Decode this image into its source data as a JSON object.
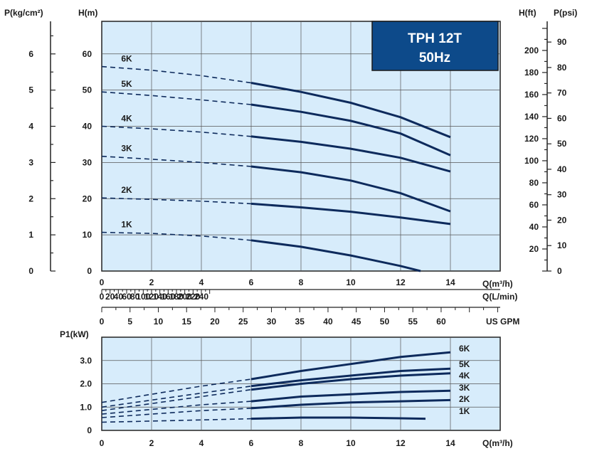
{
  "title_box": {
    "line1": "TPH 12T",
    "line2": "50Hz",
    "bg_color": "#0d4a8a"
  },
  "colors": {
    "plot_bg": "#d7ecfb",
    "curve": "#0d2a5c",
    "grid": "#555555"
  },
  "axis_labels": {
    "pressure_kg": "P(kg/cm²)",
    "head_m": "H(m)",
    "head_ft": "H(ft)",
    "pressure_psi": "P(psi)",
    "flow_m3h": "Q(m³/h)",
    "flow_lmin": "Q(L/min)",
    "flow_gpm": "US GPM",
    "power_kw": "P1(kW)",
    "flow_m3h_bottom": "Q(m³/h)"
  },
  "chart_data": [
    {
      "type": "line",
      "id": "head-curve",
      "title": "TPH 12T 50Hz",
      "xlabel": "Q(m³/h)",
      "ylabel": "H(m)",
      "xlim": [
        0,
        16
      ],
      "ylim": [
        0,
        69
      ],
      "x_ticks": [
        "0",
        "2",
        "4",
        "6",
        "8",
        "10",
        "12",
        "14"
      ],
      "y_ticks": [
        "0",
        "10",
        "20",
        "30",
        "40",
        "50",
        "60"
      ],
      "pressure_kg_ticks": [
        "0",
        "1",
        "2",
        "3",
        "4",
        "5",
        "6"
      ],
      "head_ft_ticks": [
        "20",
        "40",
        "60",
        "80",
        "100",
        "120",
        "140",
        "160",
        "180",
        "200"
      ],
      "pressure_psi_ticks": [
        "0",
        "10",
        "20",
        "30",
        "40",
        "50",
        "60",
        "70",
        "80",
        "90"
      ],
      "flow_lmin_ticks": [
        "0",
        "20",
        "40",
        "60",
        "80",
        "100",
        "120",
        "140",
        "160",
        "180",
        "200",
        "220",
        "240"
      ],
      "flow_gpm_ticks": [
        "0",
        "5",
        "10",
        "15",
        "20",
        "25",
        "30",
        "35",
        "40",
        "45",
        "50",
        "55",
        "60"
      ],
      "grid": true,
      "dashed_until_x": 6,
      "series": [
        {
          "name": "6K",
          "x": [
            0,
            2,
            4,
            6,
            8,
            10,
            12,
            14
          ],
          "y": [
            56.5,
            55.5,
            54,
            52,
            49.5,
            46.5,
            42.5,
            37
          ]
        },
        {
          "name": "5K",
          "x": [
            0,
            2,
            4,
            6,
            8,
            10,
            12,
            14
          ],
          "y": [
            49.5,
            48.5,
            47.3,
            46,
            44,
            41.5,
            38,
            32
          ]
        },
        {
          "name": "4K",
          "x": [
            0,
            2,
            4,
            6,
            8,
            10,
            12,
            14
          ],
          "y": [
            40,
            39.3,
            38.4,
            37.2,
            35.7,
            33.8,
            31.3,
            27.5
          ]
        },
        {
          "name": "3K",
          "x": [
            0,
            2,
            4,
            6,
            8,
            10,
            12,
            14
          ],
          "y": [
            31.7,
            30.9,
            30,
            28.9,
            27.3,
            25,
            21.5,
            16.5
          ]
        },
        {
          "name": "2K",
          "x": [
            0,
            2,
            4,
            6,
            8,
            10,
            12,
            14
          ],
          "y": [
            20.2,
            19.8,
            19.3,
            18.6,
            17.6,
            16.4,
            14.8,
            13
          ]
        },
        {
          "name": "1K",
          "x": [
            0,
            2,
            4,
            6,
            8,
            10,
            12,
            12.8
          ],
          "y": [
            10.7,
            10.4,
            9.7,
            8.5,
            6.7,
            4.3,
            1.4,
            0
          ]
        }
      ]
    },
    {
      "type": "line",
      "id": "power-curve",
      "xlabel": "Q(m³/h)",
      "ylabel": "P1(kW)",
      "xlim": [
        0,
        16
      ],
      "ylim": [
        0,
        4.0
      ],
      "x_ticks": [
        "0",
        "2",
        "4",
        "6",
        "8",
        "10",
        "12",
        "14"
      ],
      "y_ticks": [
        "0",
        "1.0",
        "2.0",
        "3.0"
      ],
      "grid": true,
      "dashed_until_x": 6,
      "series": [
        {
          "name": "6K",
          "x": [
            0,
            2,
            4,
            6,
            8,
            10,
            12,
            14
          ],
          "y": [
            1.2,
            1.55,
            1.9,
            2.2,
            2.55,
            2.85,
            3.15,
            3.35
          ]
        },
        {
          "name": "5K",
          "x": [
            0,
            2,
            4,
            6,
            8,
            10,
            12,
            14
          ],
          "y": [
            1.0,
            1.3,
            1.6,
            1.9,
            2.15,
            2.35,
            2.55,
            2.65
          ]
        },
        {
          "name": "4K",
          "x": [
            0,
            2,
            4,
            6,
            8,
            10,
            12,
            14
          ],
          "y": [
            0.85,
            1.15,
            1.45,
            1.75,
            2.0,
            2.2,
            2.35,
            2.45
          ]
        },
        {
          "name": "3K",
          "x": [
            0,
            2,
            4,
            6,
            8,
            10,
            12,
            14
          ],
          "y": [
            0.7,
            0.9,
            1.1,
            1.25,
            1.45,
            1.55,
            1.65,
            1.7
          ]
        },
        {
          "name": "2K",
          "x": [
            0,
            2,
            4,
            6,
            8,
            10,
            12,
            14
          ],
          "y": [
            0.55,
            0.7,
            0.85,
            0.95,
            1.1,
            1.2,
            1.25,
            1.3
          ]
        },
        {
          "name": "1K",
          "x": [
            0,
            2,
            4,
            6,
            8,
            10,
            12,
            13
          ],
          "y": [
            0.35,
            0.4,
            0.45,
            0.5,
            0.55,
            0.55,
            0.52,
            0.5
          ]
        }
      ]
    }
  ]
}
